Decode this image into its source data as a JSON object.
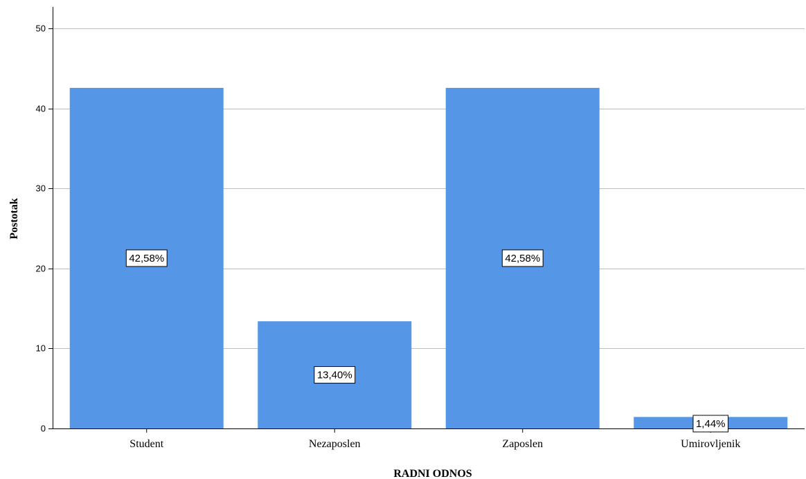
{
  "chart_data": {
    "type": "bar",
    "categories": [
      "Student",
      "Nezaposlen",
      "Zaposlen",
      "Umirovljenik"
    ],
    "values": [
      42.58,
      13.4,
      42.58,
      1.44
    ],
    "data_labels": [
      "42,58%",
      "13,40%",
      "42,58%",
      "1,44%"
    ],
    "xlabel": "RADNI ODNOS",
    "ylabel": "Postotak",
    "ylim": [
      0,
      50
    ],
    "yticks": [
      0,
      10,
      20,
      30,
      40,
      50
    ],
    "grid": "horizontal",
    "bar_color": "#5596E6",
    "gridline_color": "#bdbdbd"
  }
}
